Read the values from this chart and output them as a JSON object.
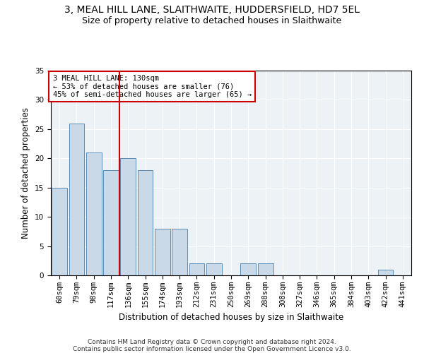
{
  "title": "3, MEAL HILL LANE, SLAITHWAITE, HUDDERSFIELD, HD7 5EL",
  "subtitle": "Size of property relative to detached houses in Slaithwaite",
  "xlabel": "Distribution of detached houses by size in Slaithwaite",
  "ylabel": "Number of detached properties",
  "categories": [
    "60sqm",
    "79sqm",
    "98sqm",
    "117sqm",
    "136sqm",
    "155sqm",
    "174sqm",
    "193sqm",
    "212sqm",
    "231sqm",
    "250sqm",
    "269sqm",
    "288sqm",
    "308sqm",
    "327sqm",
    "346sqm",
    "365sqm",
    "384sqm",
    "403sqm",
    "422sqm",
    "441sqm"
  ],
  "values": [
    15,
    26,
    21,
    18,
    20,
    18,
    8,
    8,
    2,
    2,
    0,
    2,
    2,
    0,
    0,
    0,
    0,
    0,
    0,
    1,
    0
  ],
  "bar_color": "#c9d9e8",
  "bar_edge_color": "#5b8db8",
  "vline_x_index": 4,
  "vline_color": "#cc0000",
  "annotation_text": "3 MEAL HILL LANE: 130sqm\n← 53% of detached houses are smaller (76)\n45% of semi-detached houses are larger (65) →",
  "annotation_box_color": "#cc0000",
  "ylim": [
    0,
    35
  ],
  "yticks": [
    0,
    5,
    10,
    15,
    20,
    25,
    30,
    35
  ],
  "footer": "Contains HM Land Registry data © Crown copyright and database right 2024.\nContains public sector information licensed under the Open Government Licence v3.0.",
  "bg_color": "#edf2f7",
  "grid_color": "#ffffff",
  "title_fontsize": 10,
  "subtitle_fontsize": 9,
  "axis_label_fontsize": 8.5,
  "tick_fontsize": 7.5,
  "footer_fontsize": 6.5
}
